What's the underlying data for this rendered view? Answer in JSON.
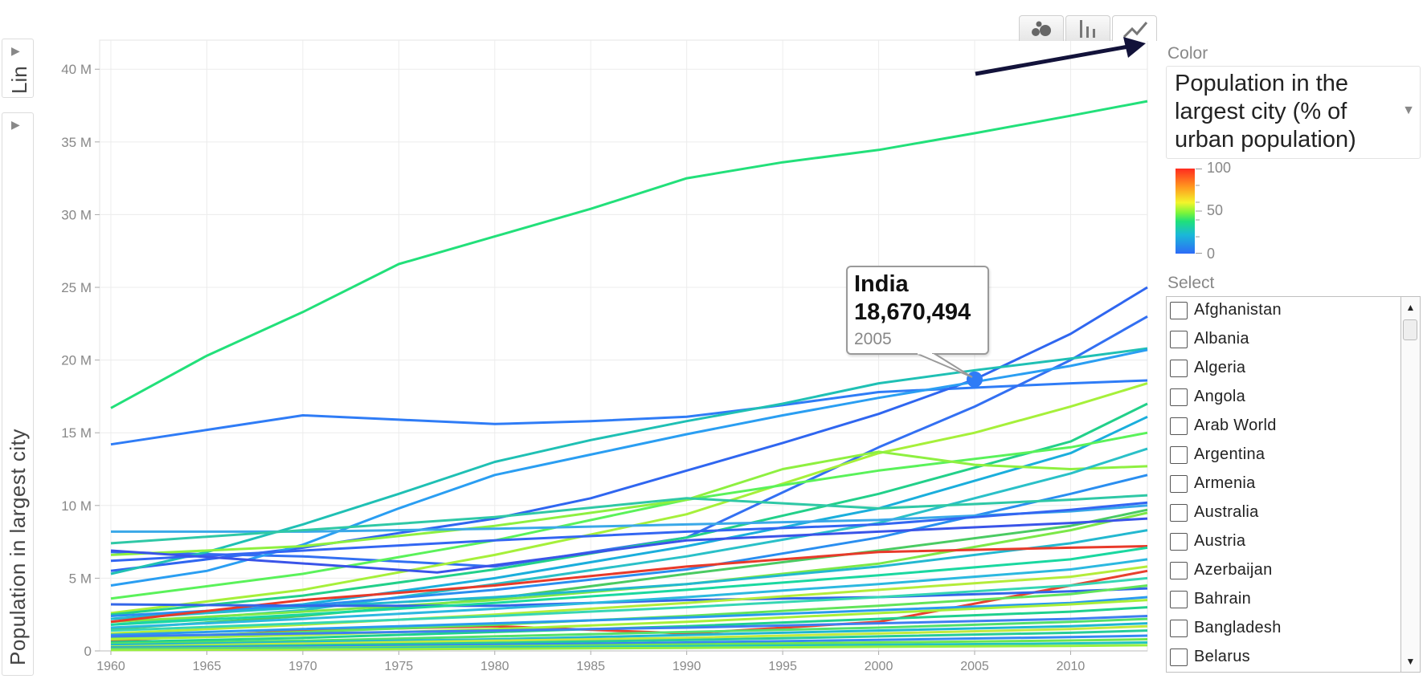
{
  "scale_toggle": {
    "label": "Lin",
    "arrow": "▶"
  },
  "y_axis_selector": {
    "label": "Population in largest city",
    "arrow": "▶"
  },
  "view_buttons": [
    {
      "name": "bubble-view-button",
      "icon": "bubbles-icon",
      "active": false
    },
    {
      "name": "bar-view-button",
      "icon": "bars-icon",
      "active": false
    },
    {
      "name": "line-view-button",
      "icon": "line-chart-icon",
      "active": true
    }
  ],
  "color_panel": {
    "label": "Color",
    "selected": "Population in the largest city (% of urban population)",
    "caret": "▼",
    "legend": {
      "max": "100",
      "mid": "50",
      "min": "0"
    }
  },
  "select_panel": {
    "label": "Select",
    "items": [
      "Afghanistan",
      "Albania",
      "Algeria",
      "Angola",
      "Arab World",
      "Argentina",
      "Armenia",
      "Australia",
      "Austria",
      "Azerbaijan",
      "Bahrain",
      "Bangladesh",
      "Belarus"
    ],
    "scroll_up": "▲",
    "scroll_down": "▼"
  },
  "tooltip": {
    "name": "India",
    "value": "18,670,494",
    "year": "2005"
  },
  "colors": {
    "arrow": "#12123a",
    "highlight_point": "#2f7cf6",
    "grid": "#ececec",
    "axis_text": "#888888"
  },
  "chart_data": {
    "type": "line",
    "ylabel": "Population in largest city",
    "xlim": [
      1960,
      2014
    ],
    "ylim": [
      0,
      42000000
    ],
    "x_ticks": [
      "1960",
      "1965",
      "1970",
      "1975",
      "1980",
      "1985",
      "1990",
      "1995",
      "2000",
      "2005",
      "2010"
    ],
    "y_ticks": [
      {
        "v": 0,
        "label": "0"
      },
      {
        "v": 5000000,
        "label": "5 M"
      },
      {
        "v": 10000000,
        "label": "10 M"
      },
      {
        "v": 15000000,
        "label": "15 M"
      },
      {
        "v": 20000000,
        "label": "20 M"
      },
      {
        "v": 25000000,
        "label": "25 M"
      },
      {
        "v": 30000000,
        "label": "30 M"
      },
      {
        "v": 35000000,
        "label": "35 M"
      },
      {
        "v": 40000000,
        "label": "40 M"
      }
    ],
    "grid": true,
    "highlight": {
      "series": "India",
      "x": 2005,
      "y": 18670494
    },
    "series": [
      {
        "color": "#22e07a",
        "x": [
          1960,
          1965,
          1970,
          1975,
          1980,
          1985,
          1990,
          1995,
          2000,
          2005,
          2010,
          2014
        ],
        "y": [
          16700000,
          20300000,
          23300000,
          26600000,
          28500000,
          30400000,
          32500000,
          33600000,
          34450000,
          35600000,
          36800000,
          37800000
        ]
      },
      {
        "color": "#2f7cf6",
        "x": [
          1960,
          1965,
          1970,
          1975,
          1980,
          1985,
          1990,
          1995,
          2000,
          2005,
          2010,
          2014
        ],
        "y": [
          14200000,
          15200000,
          16200000,
          15900000,
          15600000,
          15800000,
          16100000,
          16900000,
          17800000,
          18100000,
          18400000,
          18600000
        ]
      },
      {
        "name": "India",
        "color": "#2f66f0",
        "x": [
          1960,
          1965,
          1970,
          1975,
          1980,
          1985,
          1990,
          1995,
          2000,
          2005,
          2010,
          2014
        ],
        "y": [
          5500000,
          6300000,
          7100000,
          8100000,
          9100000,
          10500000,
          12400000,
          14300000,
          16300000,
          18670494,
          21800000,
          25000000
        ]
      },
      {
        "color": "#3370f2",
        "x": [
          1960,
          1970,
          1980,
          1990,
          2000,
          2005,
          2010,
          2014
        ],
        "y": [
          6800000,
          6500000,
          5800000,
          7800000,
          14000000,
          16800000,
          20000000,
          23000000
        ]
      },
      {
        "color": "#1fc0b4",
        "x": [
          1960,
          1965,
          1970,
          1975,
          1980,
          1985,
          1990,
          1995,
          2000,
          2005,
          2010,
          2014
        ],
        "y": [
          5300000,
          6800000,
          8700000,
          10800000,
          13000000,
          14500000,
          15800000,
          17000000,
          18400000,
          19300000,
          20100000,
          20800000
        ]
      },
      {
        "color": "#2a9ef2",
        "x": [
          1960,
          1965,
          1970,
          1975,
          1980,
          1985,
          1990,
          1995,
          2000,
          2005,
          2010,
          2014
        ],
        "y": [
          4500000,
          5500000,
          7300000,
          9800000,
          12100000,
          13500000,
          14900000,
          16200000,
          17400000,
          18500000,
          19600000,
          20700000
        ]
      },
      {
        "color": "#a6f03a",
        "x": [
          1960,
          1970,
          1980,
          1990,
          2000,
          2005,
          2010,
          2014
        ],
        "y": [
          2600000,
          4200000,
          6600000,
          9400000,
          13600000,
          15000000,
          16800000,
          18400000
        ]
      },
      {
        "color": "#22d08a",
        "x": [
          1960,
          1970,
          1980,
          1990,
          2000,
          2010,
          2014
        ],
        "y": [
          2500000,
          3800000,
          5600000,
          7800000,
          10800000,
          14400000,
          17000000
        ]
      },
      {
        "color": "#1aaedc",
        "x": [
          1960,
          1970,
          1980,
          1990,
          2000,
          2010,
          2014
        ],
        "y": [
          2200000,
          3200000,
          5000000,
          7200000,
          9800000,
          13600000,
          16100000
        ]
      },
      {
        "color": "#5af25a",
        "x": [
          1960,
          1970,
          1980,
          1990,
          2000,
          2010,
          2014
        ],
        "y": [
          3600000,
          5300000,
          7600000,
          10400000,
          12400000,
          14000000,
          15000000
        ]
      },
      {
        "color": "#8ef040",
        "x": [
          1960,
          1970,
          1980,
          1990,
          1995,
          2000,
          2005,
          2010,
          2014
        ],
        "y": [
          6600000,
          7200000,
          8600000,
          10400000,
          12500000,
          13700000,
          12800000,
          12500000,
          12700000
        ]
      },
      {
        "color": "#2ac0c8",
        "x": [
          1960,
          1970,
          1980,
          1990,
          2000,
          2010,
          2014
        ],
        "y": [
          1800000,
          2800000,
          4600000,
          6500000,
          8800000,
          12200000,
          13900000
        ]
      },
      {
        "color": "#2a8ef0",
        "x": [
          1960,
          1970,
          1980,
          1990,
          2000,
          2010,
          2014
        ],
        "y": [
          2400000,
          3100000,
          4200000,
          5600000,
          7800000,
          10800000,
          12100000
        ]
      },
      {
        "color": "#3aa8e8",
        "x": [
          1960,
          1970,
          1980,
          1990,
          2000,
          2010,
          2014
        ],
        "y": [
          8200000,
          8200000,
          8400000,
          8700000,
          9000000,
          9600000,
          10000000
        ]
      },
      {
        "color": "#2fc8a6",
        "x": [
          1960,
          1970,
          1980,
          1990,
          2000,
          2010,
          2014
        ],
        "y": [
          7400000,
          8300000,
          9200000,
          10500000,
          9800000,
          10400000,
          10700000
        ]
      },
      {
        "color": "#3366f2",
        "x": [
          1960,
          1970,
          1980,
          1990,
          2000,
          2010,
          2014
        ],
        "y": [
          6200000,
          6900000,
          7600000,
          8200000,
          8700000,
          9700000,
          10200000
        ]
      },
      {
        "color": "#4acb62",
        "x": [
          1960,
          1970,
          1980,
          1990,
          2000,
          2010,
          2014
        ],
        "y": [
          1500000,
          2400000,
          3600000,
          5300000,
          6900000,
          8600000,
          9700000
        ]
      },
      {
        "color": "#7ce848",
        "x": [
          1960,
          1970,
          1980,
          1990,
          2000,
          2010,
          2014
        ],
        "y": [
          2000000,
          2700000,
          3500000,
          4600000,
          6000000,
          8300000,
          9500000
        ]
      },
      {
        "color": "#23b8d0",
        "x": [
          1960,
          1970,
          1980,
          1990,
          2000,
          2010,
          2014
        ],
        "y": [
          2200000,
          3000000,
          3700000,
          4600000,
          5800000,
          7400000,
          8300000
        ]
      },
      {
        "color": "#3a54e8",
        "x": [
          1960,
          1977,
          1980,
          1990,
          2000,
          2010,
          2014
        ],
        "y": [
          6900000,
          5400000,
          5900000,
          7600000,
          8200000,
          8800000,
          9100000
        ]
      },
      {
        "color": "#e83a2a",
        "x": [
          1960,
          1970,
          1980,
          1990,
          2000,
          2010,
          2014
        ],
        "y": [
          2000000,
          3500000,
          4500000,
          5800000,
          6800000,
          7100000,
          7200000
        ]
      },
      {
        "color": "#e8402e",
        "x": [
          1960,
          1970,
          1980,
          1990,
          2000,
          2010,
          2014
        ],
        "y": [
          700000,
          1400000,
          1700000,
          1200000,
          2000000,
          4500000,
          5500000
        ]
      },
      {
        "color": "#3366e8",
        "x": [
          1960,
          1970,
          1980,
          1990,
          2000,
          2010,
          2014
        ],
        "y": [
          3200000,
          3100000,
          3100000,
          3500000,
          3700000,
          4100000,
          4300000
        ]
      },
      {
        "color": "#1ad8a0",
        "x": [
          1960,
          1970,
          1980,
          1990,
          2000,
          2010,
          2014
        ],
        "y": [
          1800000,
          2500000,
          3300000,
          4200000,
          5200000,
          6300000,
          7100000
        ]
      },
      {
        "color": "#2cb8e0",
        "x": [
          1960,
          1970,
          1980,
          1990,
          2000,
          2010,
          2014
        ],
        "y": [
          1600000,
          2200000,
          2900000,
          3700000,
          4600000,
          5600000,
          6300000
        ]
      },
      {
        "color": "#b4ec3a",
        "x": [
          1960,
          1970,
          1980,
          1990,
          2000,
          2010,
          2014
        ],
        "y": [
          1200000,
          1800000,
          2500000,
          3300000,
          4200000,
          5100000,
          5800000
        ]
      },
      {
        "color": "#36d6b4",
        "x": [
          1960,
          1970,
          1980,
          1990,
          2000,
          2010,
          2014
        ],
        "y": [
          1400000,
          1900000,
          2400000,
          3000000,
          3700000,
          4500000,
          5000000
        ]
      },
      {
        "color": "#62e45a",
        "x": [
          1960,
          1970,
          1980,
          1990,
          2000,
          2010,
          2014
        ],
        "y": [
          900000,
          1300000,
          1800000,
          2400000,
          3100000,
          3900000,
          4500000
        ]
      },
      {
        "color": "#2a9aee",
        "x": [
          1960,
          1970,
          1980,
          1990,
          2000,
          2010,
          2014
        ],
        "y": [
          1100000,
          1500000,
          1900000,
          2300000,
          2800000,
          3300000,
          3700000
        ]
      },
      {
        "color": "#a8ef38",
        "x": [
          1960,
          1970,
          1980,
          1990,
          2000,
          2010,
          2014
        ],
        "y": [
          800000,
          1100000,
          1500000,
          2000000,
          2600000,
          3200000,
          3500000
        ]
      },
      {
        "color": "#1fd08e",
        "x": [
          1960,
          1970,
          1980,
          1990,
          2000,
          2010,
          2014
        ],
        "y": [
          600000,
          900000,
          1300000,
          1700000,
          2200000,
          2700000,
          3000000
        ]
      },
      {
        "color": "#3e7ef0",
        "x": [
          1960,
          1970,
          1980,
          1990,
          2000,
          2010,
          2014
        ],
        "y": [
          1000000,
          1200000,
          1400000,
          1600000,
          1900000,
          2200000,
          2400000
        ]
      },
      {
        "color": "#54e06a",
        "x": [
          1960,
          1970,
          1980,
          1990,
          2000,
          2010,
          2014
        ],
        "y": [
          500000,
          700000,
          1000000,
          1300000,
          1600000,
          2000000,
          2200000
        ]
      },
      {
        "color": "#1fb6d2",
        "x": [
          1960,
          1970,
          1980,
          1990,
          2000,
          2010,
          2014
        ],
        "y": [
          400000,
          600000,
          800000,
          1100000,
          1400000,
          1700000,
          1900000
        ]
      },
      {
        "color": "#c4ea3e",
        "x": [
          1960,
          1970,
          1980,
          1990,
          2000,
          2010,
          2014
        ],
        "y": [
          300000,
          500000,
          700000,
          900000,
          1200000,
          1500000,
          1700000
        ]
      },
      {
        "color": "#26cc9a",
        "x": [
          1960,
          1970,
          1980,
          1990,
          2000,
          2010,
          2014
        ],
        "y": [
          250000,
          380000,
          550000,
          750000,
          1000000,
          1250000,
          1400000
        ]
      },
      {
        "color": "#3588f2",
        "x": [
          1960,
          1970,
          1980,
          1990,
          2000,
          2010,
          2014
        ],
        "y": [
          200000,
          300000,
          420000,
          580000,
          760000,
          950000,
          1050000
        ]
      },
      {
        "color": "#6ee650",
        "x": [
          1960,
          1970,
          1980,
          1990,
          2000,
          2010,
          2014
        ],
        "y": [
          150000,
          220000,
          320000,
          440000,
          580000,
          720000,
          800000
        ]
      },
      {
        "color": "#22c4c0",
        "x": [
          1960,
          1970,
          1980,
          1990,
          2000,
          2010,
          2014
        ],
        "y": [
          100000,
          160000,
          230000,
          320000,
          420000,
          520000,
          580000
        ]
      },
      {
        "color": "#98ee40",
        "x": [
          1960,
          1970,
          1980,
          1990,
          2000,
          2010,
          2014
        ],
        "y": [
          60000,
          100000,
          150000,
          210000,
          280000,
          350000,
          390000
        ]
      }
    ]
  }
}
